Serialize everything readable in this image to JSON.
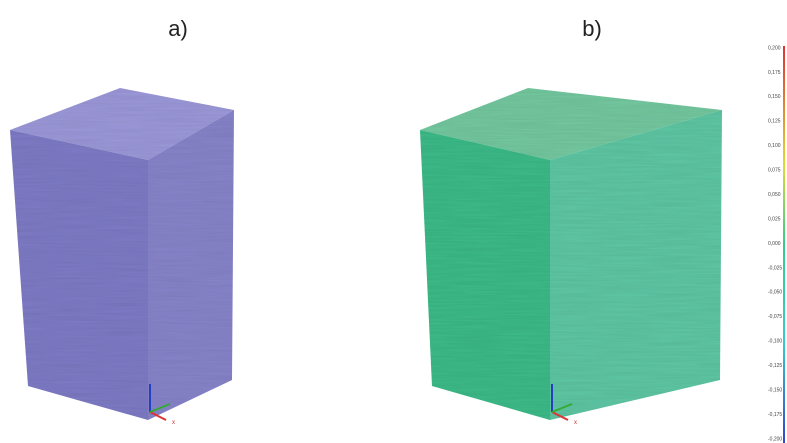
{
  "panels": [
    {
      "label": "a)",
      "axis_label": "x"
    },
    {
      "label": "b)",
      "axis_label": "x"
    }
  ],
  "scale": {
    "ticks": [
      "0,200",
      "0,175",
      "0,150",
      "0,125",
      "0,100",
      "0,075",
      "0,050",
      "0,025",
      "0,000",
      "-0,025",
      "-0,050",
      "-0,075",
      "-0,100",
      "-0,125",
      "-0,150",
      "-0,175",
      "-0,200"
    ]
  }
}
